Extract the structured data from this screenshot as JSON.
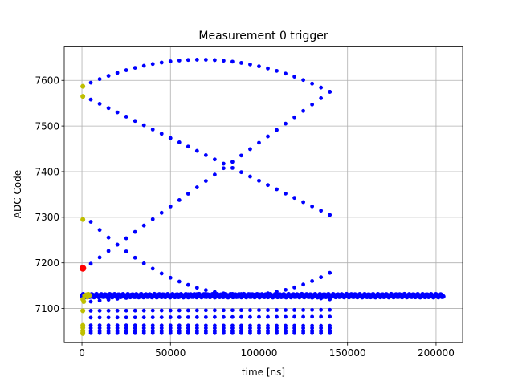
{
  "chart_data": {
    "type": "scatter",
    "title": "Measurement 0 trigger",
    "xlabel": "time [ns]",
    "ylabel": "ADC Code",
    "xlim": [
      -10000,
      215000
    ],
    "ylim": [
      7025,
      7675
    ],
    "xticks": [
      0,
      50000,
      100000,
      150000,
      200000
    ],
    "xtick_labels": [
      "0",
      "50000",
      "100000",
      "150000",
      "200000"
    ],
    "yticks": [
      7100,
      7200,
      7300,
      7400,
      7500,
      7600
    ],
    "ytick_labels": [
      "7100",
      "7200",
      "7300",
      "7400",
      "7500",
      "7600"
    ],
    "grid": true,
    "colors": {
      "blue": "#0000ff",
      "olive": "#bfbf00",
      "red": "#ff0000"
    },
    "series": [
      {
        "color": "blue",
        "curves": [
          {
            "x0": 5000,
            "x1": 140000,
            "n": 28,
            "y0": 7595,
            "y1": 7575,
            "mid": 7645,
            "kind": "arc"
          },
          {
            "x0": 5000,
            "x1": 140000,
            "n": 28,
            "y0": 7558,
            "y1": 7305,
            "kind": "line"
          },
          {
            "x0": 5000,
            "x1": 140000,
            "n": 28,
            "y0": 7198,
            "y1": 7575,
            "kind": "line"
          },
          {
            "x0": 5000,
            "x1": 140000,
            "n": 28,
            "y0": 7290,
            "y1": 7178,
            "mid": 7138,
            "kind": "arc"
          },
          {
            "x0": 5000,
            "x1": 140000,
            "n": 28,
            "y0": 7115,
            "y1": 7120,
            "mid": 7132,
            "kind": "arc"
          },
          {
            "x0": 5000,
            "x1": 140000,
            "n": 28,
            "y0": 7095,
            "y1": 7097,
            "kind": "line"
          },
          {
            "x0": 5000,
            "x1": 140000,
            "n": 28,
            "y0": 7080,
            "y1": 7082,
            "kind": "line"
          },
          {
            "x0": 5000,
            "x1": 140000,
            "n": 28,
            "y0": 7063,
            "y1": 7062,
            "kind": "line"
          },
          {
            "x0": 5000,
            "x1": 140000,
            "n": 28,
            "y0": 7057,
            "y1": 7057,
            "kind": "line"
          },
          {
            "x0": 5000,
            "x1": 140000,
            "n": 28,
            "y0": 7050,
            "y1": 7050,
            "kind": "line"
          },
          {
            "x0": 5000,
            "x1": 140000,
            "n": 28,
            "y0": 7046,
            "y1": 7046,
            "kind": "line"
          }
        ],
        "baseline": {
          "x0": 0,
          "x1": 204000,
          "n": 300,
          "y": 7128,
          "spread": 3
        }
      },
      {
        "color": "olive",
        "points": [
          [
            500,
            7587
          ],
          [
            500,
            7565
          ],
          [
            500,
            7295
          ],
          [
            500,
            7120
          ],
          [
            500,
            7095
          ],
          [
            500,
            7063
          ],
          [
            500,
            7058
          ],
          [
            500,
            7051
          ],
          [
            500,
            7047
          ],
          [
            500,
            7045
          ],
          [
            1500,
            7128
          ],
          [
            2500,
            7130
          ],
          [
            3500,
            7131
          ],
          [
            4500,
            7129
          ],
          [
            3000,
            7125
          ],
          [
            1000,
            7115
          ]
        ]
      },
      {
        "color": "red",
        "points": [
          [
            500,
            7188
          ]
        ]
      }
    ]
  }
}
